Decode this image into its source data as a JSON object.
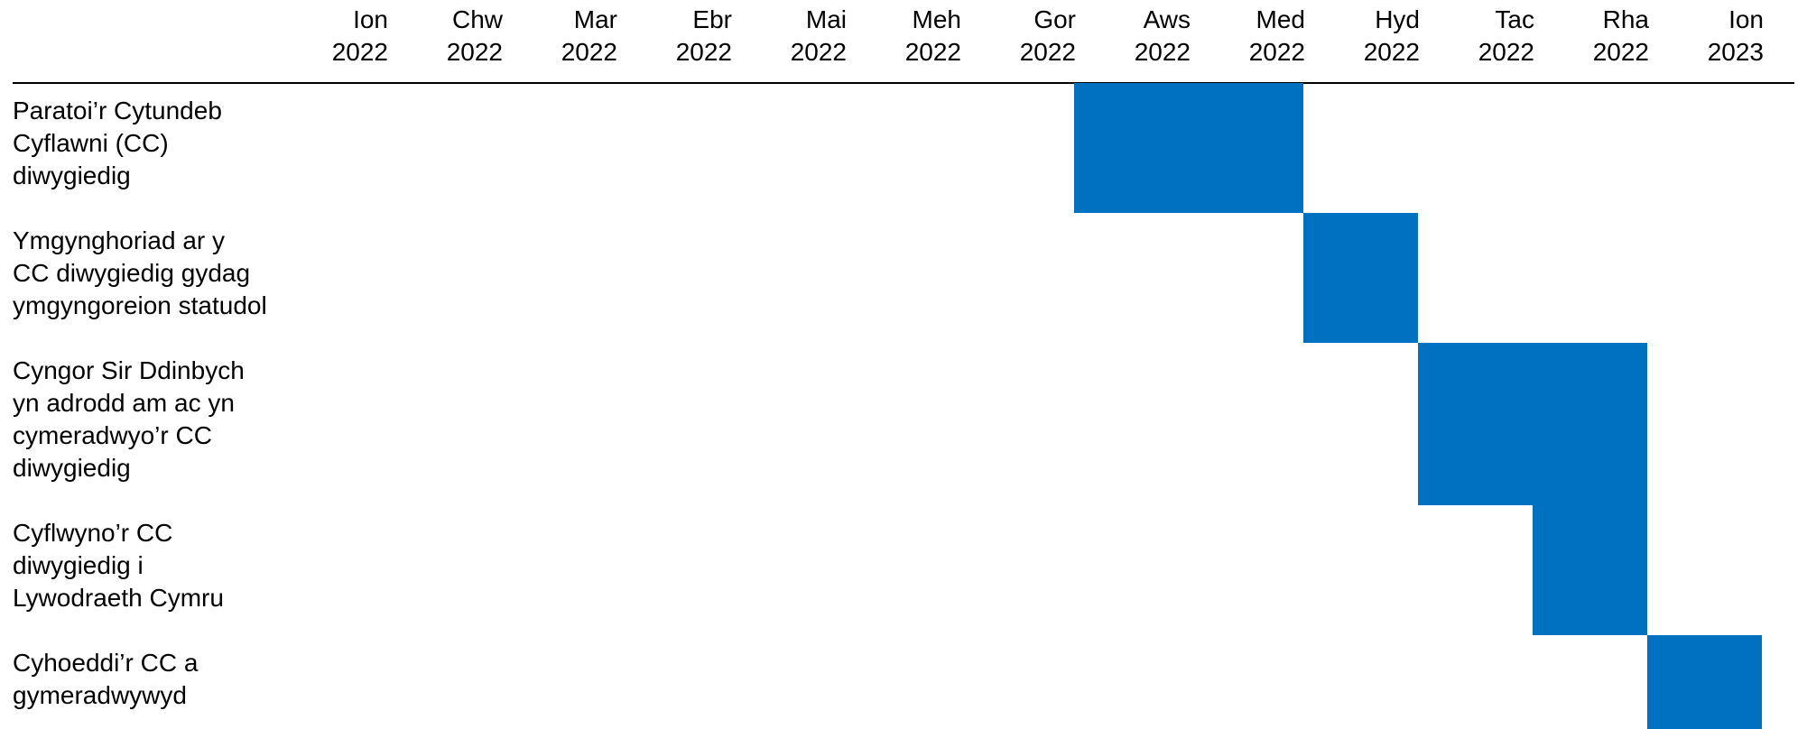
{
  "chart_data": {
    "type": "gantt",
    "title": "",
    "months": [
      {
        "month": "Ion",
        "year": "2022"
      },
      {
        "month": "Chw",
        "year": "2022"
      },
      {
        "month": "Mar",
        "year": "2022"
      },
      {
        "month": "Ebr",
        "year": "2022"
      },
      {
        "month": "Mai",
        "year": "2022"
      },
      {
        "month": "Meh",
        "year": "2022"
      },
      {
        "month": "Gor",
        "year": "2022"
      },
      {
        "month": "Aws",
        "year": "2022"
      },
      {
        "month": "Med",
        "year": "2022"
      },
      {
        "month": "Hyd",
        "year": "2022"
      },
      {
        "month": "Tac",
        "year": "2022"
      },
      {
        "month": "Rha",
        "year": "2022"
      },
      {
        "month": "Ion",
        "year": "2023"
      }
    ],
    "tasks": [
      {
        "label_lines": [
          "Paratoi’r Cytundeb",
          "Cyflawni (CC)",
          "diwygiedig"
        ],
        "start": "2022-07",
        "end": "2022-09"
      },
      {
        "label_lines": [
          "Ymgynghoriad ar y",
          "CC diwygiedig gydag",
          "ymgyngoreion statudol"
        ],
        "start": "2022-09",
        "end": "2022-10"
      },
      {
        "label_lines": [
          "Cyngor Sir Ddinbych",
          "yn adrodd am ac yn",
          "cymeradwyo’r CC",
          "diwygiedig"
        ],
        "start": "2022-10",
        "end": "2022-12"
      },
      {
        "label_lines": [
          "Cyflwyno’r CC",
          "diwygiedig i",
          "Lywodraeth Cymru"
        ],
        "start": "2022-11",
        "end": "2022-12"
      },
      {
        "label_lines": [
          "Cyhoeddi’r CC a",
          "gymeradwywyd"
        ],
        "start": "2022-12",
        "end": "2023-01"
      }
    ],
    "bar_color": "#0070C0",
    "axis_line_color": "#000000",
    "grid": false
  }
}
